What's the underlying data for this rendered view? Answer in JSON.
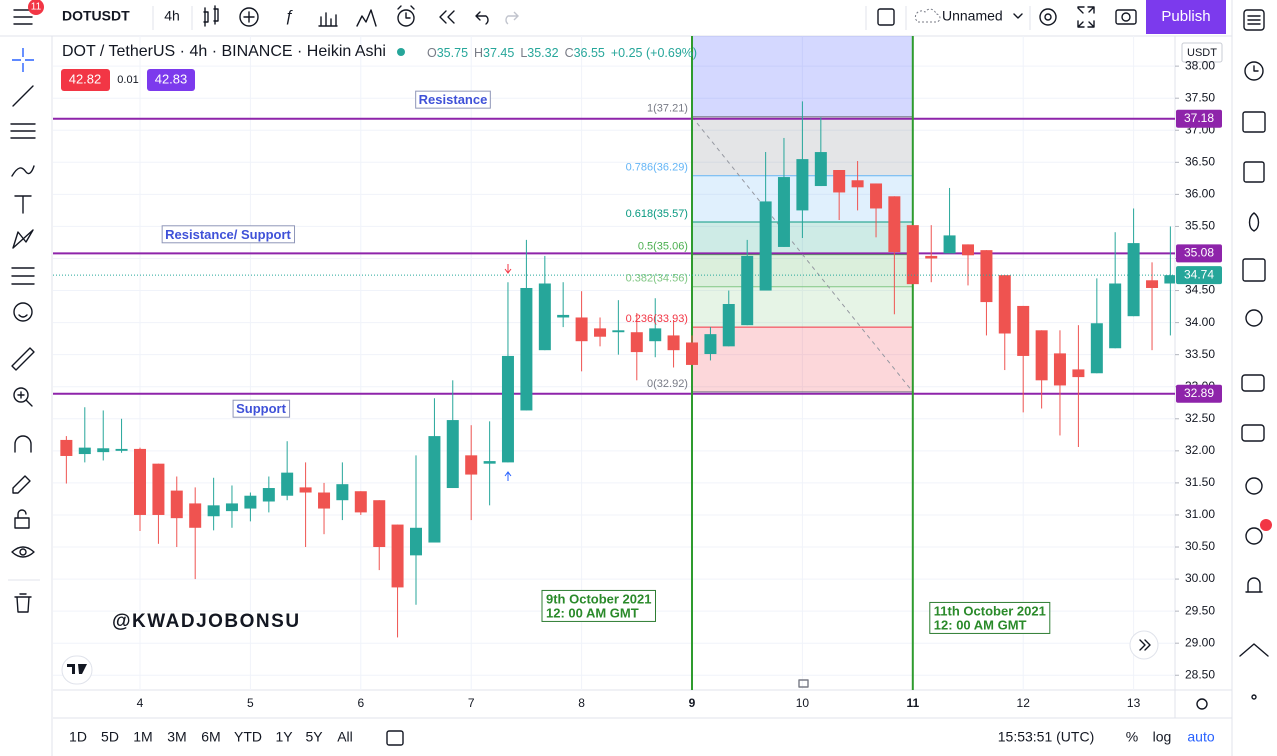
{
  "toolbar": {
    "badge": "11",
    "symbol": "DOTUSDT",
    "interval": "4h",
    "layout_name": "Unnamed",
    "publish": "Publish"
  },
  "legend": {
    "title": "DOT / TetherUS · 4h · BINANCE · Heikin Ashi",
    "ohlc": [
      {
        "key": "O",
        "value": 35.75
      },
      {
        "key": "H",
        "value": 37.45
      },
      {
        "key": "L",
        "value": 35.32
      },
      {
        "key": "C",
        "value": 36.55
      }
    ],
    "change": "+0.25 (+0.69%)",
    "bid": 42.82,
    "spread": 0.01,
    "ask": 42.83
  },
  "bottom_bar": {
    "ranges": [
      "1D",
      "5D",
      "1M",
      "3M",
      "6M",
      "YTD",
      "1Y",
      "5Y",
      "All"
    ],
    "clock": "15:53:51 (UTC)",
    "percent": "%",
    "log": "log",
    "auto": "auto"
  },
  "chart_data": {
    "type": "candlestick",
    "currency": "USDT",
    "watermark": "@KWADJOBONSU",
    "up_color": "#26a69a",
    "down_color": "#ef5350",
    "grid": true,
    "xlim": [
      3.212,
      13.375
    ],
    "xticks": [
      4,
      5,
      6,
      7,
      8,
      9,
      10,
      11,
      12,
      13
    ],
    "ylim": [
      28.27,
      38.47
    ],
    "yticks": [
      {
        "value": 28.5,
        "label": "28.50"
      },
      {
        "value": 29,
        "label": "29.00"
      },
      {
        "value": 29.5,
        "label": "29.50"
      },
      {
        "value": 30,
        "label": "30.00"
      },
      {
        "value": 30.5,
        "label": "30.50"
      },
      {
        "value": 31,
        "label": "31.00"
      },
      {
        "value": 31.5,
        "label": "31.50"
      },
      {
        "value": 32,
        "label": "32.00"
      },
      {
        "value": 32.5,
        "label": "32.50"
      },
      {
        "value": 33,
        "label": "33.00"
      },
      {
        "value": 33.5,
        "label": "33.50"
      },
      {
        "value": 34,
        "label": "34.00"
      },
      {
        "value": 34.5,
        "label": "34.50"
      },
      {
        "value": 35,
        "label": "35.00"
      },
      {
        "value": 35.5,
        "label": "35.50"
      },
      {
        "value": 36,
        "label": "36.00"
      },
      {
        "value": 36.5,
        "label": "36.50"
      },
      {
        "value": 37,
        "label": "37.00"
      },
      {
        "value": 37.5,
        "label": "37.50"
      },
      {
        "value": 38,
        "label": "38.00"
      }
    ],
    "x": [
      3.333,
      3.5,
      3.667,
      3.833,
      4,
      4.167,
      4.333,
      4.5,
      4.667,
      4.833,
      5,
      5.167,
      5.333,
      5.5,
      5.667,
      5.833,
      6,
      6.167,
      6.333,
      6.5,
      6.667,
      6.833,
      7,
      7.167,
      7.333,
      7.5,
      7.667,
      7.833,
      8,
      8.167,
      8.333,
      8.5,
      8.667,
      8.833,
      9,
      9.167,
      9.333,
      9.5,
      9.667,
      9.833,
      10,
      10.167,
      10.333,
      10.5,
      10.667,
      10.833,
      11,
      11.167,
      11.333,
      11.5,
      11.667,
      11.833,
      12,
      12.167,
      12.333,
      12.5,
      12.667,
      12.833,
      13,
      13.167,
      13.333
    ],
    "open": [
      32.17,
      31.95,
      31.98,
      32.0,
      32.03,
      31.8,
      31.38,
      31.18,
      30.98,
      31.06,
      31.1,
      31.21,
      31.3,
      31.43,
      31.35,
      31.23,
      31.37,
      31.23,
      30.85,
      30.37,
      30.57,
      31.42,
      31.93,
      31.8,
      31.82,
      32.63,
      33.57,
      34.08,
      34.08,
      33.91,
      33.85,
      33.85,
      33.71,
      33.8,
      33.69,
      33.51,
      33.63,
      33.96,
      34.5,
      35.18,
      35.75,
      36.13,
      36.38,
      36.22,
      36.17,
      35.97,
      35.52,
      35.04,
      35.08,
      35.22,
      35.13,
      34.74,
      34.26,
      33.88,
      33.52,
      33.27,
      33.21,
      33.6,
      34.1,
      34.66,
      34.61
    ],
    "high": [
      32.23,
      32.68,
      32.63,
      32.5,
      32.05,
      31.8,
      31.6,
      31.43,
      31.58,
      31.46,
      31.35,
      31.6,
      32.15,
      31.82,
      31.5,
      31.82,
      31.37,
      31.23,
      30.85,
      31.93,
      32.82,
      33.1,
      32.4,
      32.46,
      34.63,
      35.29,
      35.04,
      34.63,
      34.49,
      34.08,
      34.35,
      34.15,
      34.38,
      34.04,
      33.8,
      33.93,
      34.5,
      35.29,
      36.66,
      36.88,
      37.45,
      37.2,
      36.38,
      36.52,
      36.17,
      35.97,
      35.52,
      35.52,
      36.1,
      35.22,
      35.13,
      34.74,
      34.26,
      33.88,
      33.88,
      33.96,
      34.69,
      35.41,
      35.78,
      34.94,
      35.5
    ],
    "low": [
      31.49,
      31.82,
      31.85,
      31.97,
      30.75,
      30.55,
      30.5,
      30.0,
      30.76,
      30.8,
      30.9,
      31.04,
      31.23,
      30.5,
      30.7,
      30.92,
      31.0,
      30.14,
      29.09,
      29.6,
      30.57,
      31.42,
      30.92,
      31.15,
      31.82,
      32.63,
      33.57,
      33.93,
      33.24,
      33.63,
      33.5,
      33.1,
      33.46,
      33.3,
      33.34,
      33.41,
      33.63,
      33.96,
      34.5,
      35.18,
      35.32,
      36.13,
      35.6,
      35.75,
      35.33,
      34.13,
      34.6,
      34.63,
      35.08,
      34.58,
      33.8,
      33.26,
      32.6,
      32.66,
      32.24,
      32.06,
      33.21,
      33.6,
      34.1,
      33.57,
      33.8
    ],
    "close": [
      31.92,
      32.05,
      32.04,
      32.03,
      31.0,
      31.0,
      30.95,
      30.8,
      31.15,
      31.18,
      31.3,
      31.42,
      31.66,
      31.35,
      31.1,
      31.48,
      31.04,
      30.5,
      29.87,
      30.8,
      32.23,
      32.48,
      31.63,
      31.84,
      33.48,
      34.54,
      34.61,
      34.12,
      33.71,
      33.78,
      33.88,
      33.54,
      33.91,
      33.57,
      33.34,
      33.82,
      34.29,
      35.04,
      35.89,
      36.27,
      36.55,
      36.66,
      36.03,
      36.11,
      35.78,
      35.1,
      34.6,
      35.0,
      35.36,
      35.05,
      34.32,
      33.83,
      33.48,
      33.1,
      33.02,
      33.15,
      33.99,
      34.61,
      35.24,
      34.54,
      34.74
    ],
    "last_price": 34.74,
    "hlines": [
      {
        "name": "Resistance",
        "value": 37.18
      },
      {
        "name": "Resistance/ Support",
        "value": 35.08
      },
      {
        "name": "Support",
        "value": 32.89
      }
    ],
    "hline_color": "#8e24aa",
    "vlines": [
      {
        "x": 9,
        "label": [
          "9th October 2021",
          "12: 00 AM GMT"
        ]
      },
      {
        "x": 11,
        "label": [
          "11th October 2021",
          "12: 00 AM GMT"
        ]
      }
    ],
    "vline_color": "#2e9b2e",
    "fibonacci": {
      "x_start": 9,
      "x_end": 11,
      "extension_color": "#3d4dff",
      "levels": [
        {
          "label": "1(37.21)",
          "value": 37.21,
          "color": "#787b86"
        },
        {
          "label": "0.786(36.29)",
          "value": 36.29,
          "color": "#64b5f6"
        },
        {
          "label": "0.618(35.57)",
          "value": 35.57,
          "color": "#089981"
        },
        {
          "label": "0.5(35.06)",
          "value": 35.06,
          "color": "#4caf50"
        },
        {
          "label": "0.382(34.56)",
          "value": 34.56,
          "color": "#81c784"
        },
        {
          "label": "0.236(33.93)",
          "value": 33.93,
          "color": "#f23645"
        },
        {
          "label": "0(32.92)",
          "value": 32.92,
          "color": "#787b86"
        }
      ]
    }
  }
}
